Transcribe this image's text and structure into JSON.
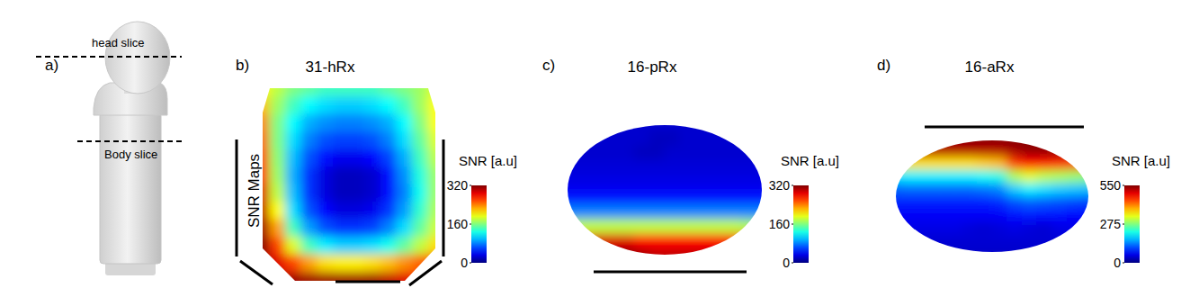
{
  "figure": {
    "panel_labels": [
      "a)",
      "b)",
      "c)",
      "d)"
    ],
    "row_label": "SNR Maps",
    "phantom_labels": [
      "head slice",
      "Body slice"
    ]
  },
  "chart_data": [
    {
      "type": "heatmap",
      "title": "31-hRx",
      "colorbar_label": "SNR [a.u]",
      "colorbar_lim": [
        0,
        320
      ],
      "colorbar_ticks": [
        0,
        160,
        320
      ],
      "cells": [
        [
          200,
          180,
          160,
          150,
          140,
          140,
          140,
          140,
          150,
          160,
          170,
          190
        ],
        [
          220,
          170,
          140,
          120,
          110,
          105,
          105,
          110,
          120,
          140,
          170,
          200
        ],
        [
          240,
          160,
          120,
          95,
          85,
          80,
          80,
          85,
          95,
          120,
          160,
          200
        ],
        [
          250,
          160,
          110,
          80,
          65,
          60,
          60,
          65,
          80,
          110,
          150,
          190
        ],
        [
          260,
          165,
          100,
          65,
          45,
          35,
          35,
          40,
          60,
          95,
          140,
          180
        ],
        [
          270,
          170,
          95,
          55,
          30,
          20,
          20,
          25,
          45,
          85,
          130,
          170
        ],
        [
          290,
          180,
          100,
          55,
          30,
          20,
          20,
          25,
          45,
          80,
          125,
          170
        ],
        [
          300,
          200,
          110,
          65,
          40,
          30,
          30,
          35,
          55,
          90,
          135,
          175
        ],
        [
          310,
          230,
          140,
          90,
          65,
          55,
          55,
          60,
          80,
          110,
          150,
          185
        ],
        [
          320,
          260,
          190,
          140,
          115,
          105,
          105,
          110,
          125,
          150,
          180,
          210
        ],
        [
          310,
          290,
          260,
          230,
          210,
          205,
          205,
          210,
          220,
          235,
          250,
          260
        ],
        [
          300,
          300,
          310,
          310,
          310,
          310,
          310,
          310,
          300,
          290,
          280,
          270
        ]
      ]
    },
    {
      "type": "heatmap",
      "title": "16-pRx",
      "colorbar_label": "SNR [a.u]",
      "colorbar_lim": [
        0,
        320
      ],
      "colorbar_ticks": [
        0,
        160,
        320
      ],
      "cells": [
        [
          25,
          25,
          25,
          25,
          25,
          25,
          25,
          25,
          25,
          25,
          25,
          25,
          25,
          25
        ],
        [
          25,
          25,
          25,
          25,
          25,
          25,
          20,
          20,
          25,
          25,
          25,
          25,
          25,
          25
        ],
        [
          25,
          25,
          25,
          25,
          25,
          20,
          20,
          25,
          25,
          25,
          25,
          25,
          25,
          25
        ],
        [
          28,
          28,
          28,
          28,
          28,
          28,
          28,
          28,
          28,
          28,
          28,
          28,
          28,
          28
        ],
        [
          32,
          32,
          32,
          32,
          32,
          32,
          32,
          32,
          32,
          32,
          32,
          32,
          32,
          32
        ],
        [
          45,
          45,
          45,
          45,
          45,
          45,
          45,
          45,
          45,
          45,
          45,
          45,
          45,
          45
        ],
        [
          80,
          80,
          80,
          80,
          80,
          80,
          80,
          80,
          80,
          80,
          80,
          80,
          80,
          80
        ],
        [
          170,
          180,
          180,
          180,
          180,
          180,
          180,
          180,
          180,
          180,
          180,
          180,
          175,
          170
        ],
        [
          260,
          280,
          290,
          290,
          290,
          280,
          280,
          280,
          280,
          280,
          280,
          280,
          270,
          260
        ],
        [
          290,
          310,
          320,
          320,
          320,
          310,
          300,
          300,
          300,
          300,
          300,
          300,
          290,
          280
        ]
      ]
    },
    {
      "type": "heatmap",
      "title": "16-aRx",
      "colorbar_label": "SNR [a.u]",
      "colorbar_lim": [
        0,
        550
      ],
      "colorbar_ticks": [
        0,
        275,
        550
      ],
      "cells": [
        [
          540,
          550,
          550,
          550,
          550,
          550,
          550,
          550,
          550,
          550,
          550,
          550,
          550,
          540
        ],
        [
          500,
          520,
          520,
          520,
          520,
          520,
          520,
          520,
          530,
          540,
          540,
          540,
          530,
          520
        ],
        [
          340,
          360,
          360,
          360,
          360,
          360,
          370,
          380,
          450,
          480,
          470,
          460,
          450,
          440
        ],
        [
          190,
          200,
          200,
          200,
          200,
          200,
          210,
          220,
          300,
          330,
          310,
          300,
          290,
          280
        ],
        [
          120,
          125,
          125,
          125,
          125,
          125,
          130,
          140,
          180,
          200,
          190,
          180,
          175,
          170
        ],
        [
          85,
          85,
          85,
          85,
          85,
          85,
          85,
          90,
          110,
          120,
          115,
          110,
          105,
          100
        ],
        [
          65,
          65,
          65,
          65,
          65,
          65,
          65,
          65,
          75,
          80,
          75,
          75,
          70,
          70
        ],
        [
          55,
          55,
          55,
          55,
          55,
          50,
          45,
          50,
          55,
          50,
          45,
          55,
          55,
          55
        ],
        [
          45,
          45,
          45,
          45,
          45,
          45,
          45,
          45,
          45,
          45,
          45,
          45,
          45,
          45
        ],
        [
          40,
          40,
          40,
          40,
          40,
          40,
          40,
          40,
          40,
          40,
          40,
          40,
          40,
          40
        ]
      ]
    }
  ]
}
